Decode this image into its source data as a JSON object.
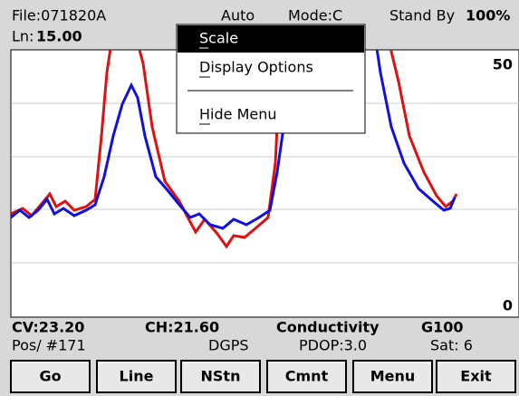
{
  "header": {
    "file": "File:071820A",
    "auto": "Auto",
    "mode": "Mode:C",
    "status": "Stand By",
    "battery": "100%",
    "line_label": "Ln:",
    "line_value": "15.00"
  },
  "plot": {
    "scale_max": "50",
    "scale_min": "0"
  },
  "menu": {
    "items": [
      "Scale",
      "Display Options",
      "Hide Menu"
    ]
  },
  "status": {
    "cv": "CV:23.20",
    "ch": "CH:21.60",
    "mode": "Conductivity",
    "gain": "G100",
    "pos": "Pos/ #171",
    "gps": "DGPS",
    "pdop": "PDOP:3.0",
    "sat": "Sat: 6"
  },
  "buttons": [
    "Go",
    "Line",
    "NStn",
    "Cmnt",
    "Menu",
    "Exit"
  ]
}
